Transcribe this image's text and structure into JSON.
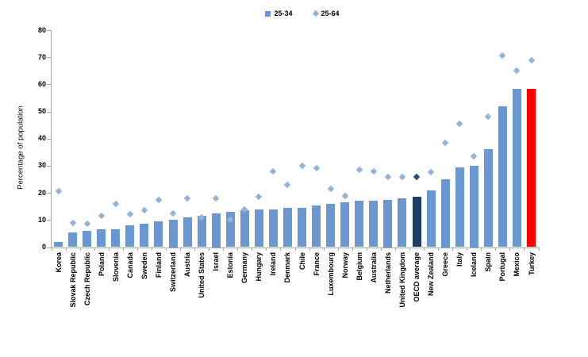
{
  "chart_data": {
    "type": "bar",
    "title": "",
    "ylabel": "Percentage of population",
    "xlabel": "",
    "ylim": [
      0,
      80
    ],
    "yticks": [
      0,
      10,
      20,
      30,
      40,
      50,
      60,
      70,
      80
    ],
    "grid": false,
    "legend_position": "top-center",
    "categories": [
      "Korea",
      "Slovak Republic",
      "Czech Republic",
      "Poland",
      "Slovenia",
      "Canada",
      "Sweden",
      "Finland",
      "Switzerland",
      "Austria",
      "United States",
      "Israel",
      "Estonia",
      "Germany",
      "Hungary",
      "Ireland",
      "Denmark",
      "Chile",
      "France",
      "Luxembourg",
      "Norway",
      "Belgium",
      "Australia",
      "Netherlands",
      "United Kingdom",
      "OECD average",
      "New Zealand",
      "Greece",
      "Italy",
      "Iceland",
      "Spain",
      "Portugal",
      "Mexico",
      "Turkey"
    ],
    "series": [
      {
        "name": "25-34",
        "render": "bar",
        "color": "#6a97cf",
        "values": [
          2,
          5.5,
          6,
          6.5,
          6.5,
          8,
          8.5,
          9.5,
          10,
          11,
          11.5,
          12.5,
          13,
          13.5,
          14,
          14,
          14.5,
          14.5,
          15.5,
          16,
          16.5,
          17,
          17,
          17.5,
          18,
          18.5,
          21,
          25,
          29.5,
          30,
          36,
          52,
          58.5,
          58.5
        ]
      },
      {
        "name": "25-64",
        "render": "scatter-diamond",
        "color": "#95b3d7",
        "values": [
          20.5,
          9,
          8.5,
          11.5,
          16,
          12,
          13.5,
          17.5,
          12.5,
          18,
          11,
          18,
          10,
          14,
          18.5,
          28,
          23,
          30,
          29,
          21.5,
          19,
          28.5,
          28,
          26,
          26,
          26,
          27.5,
          38.5,
          45.5,
          33.5,
          48,
          70.5,
          65,
          69
        ]
      }
    ],
    "highlights": {
      "OECD average": {
        "bar_color": "#1f3e63",
        "marker_color": "#2a4e7e"
      },
      "Turkey": {
        "bar_color": "#ff0000"
      }
    },
    "axis_color": "#a6a6a6"
  },
  "legend": {
    "items": [
      {
        "label": "25-34",
        "marker": "square-icon"
      },
      {
        "label": "25-64",
        "marker": "diamond-icon"
      }
    ]
  }
}
